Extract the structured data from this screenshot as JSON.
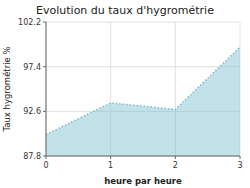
{
  "chart_data": {
    "type": "area",
    "title": "Evolution du taux d'hygrométrie",
    "x_label": "heure par heure",
    "y_label": "Taux hygrométrie %",
    "x": [
      0,
      0.5,
      1.0,
      1.3,
      2.0,
      3.0
    ],
    "values": [
      90.1,
      91.8,
      93.5,
      93.3,
      92.8,
      99.5
    ],
    "xlim": [
      0,
      3
    ],
    "ylim": [
      87.8,
      102.2
    ],
    "xticks": [
      0,
      1,
      2,
      3
    ],
    "yticks": [
      87.8,
      92.6,
      97.4,
      102.2
    ],
    "color": "#7bbccc",
    "line_style": "dotted",
    "grid": true
  }
}
